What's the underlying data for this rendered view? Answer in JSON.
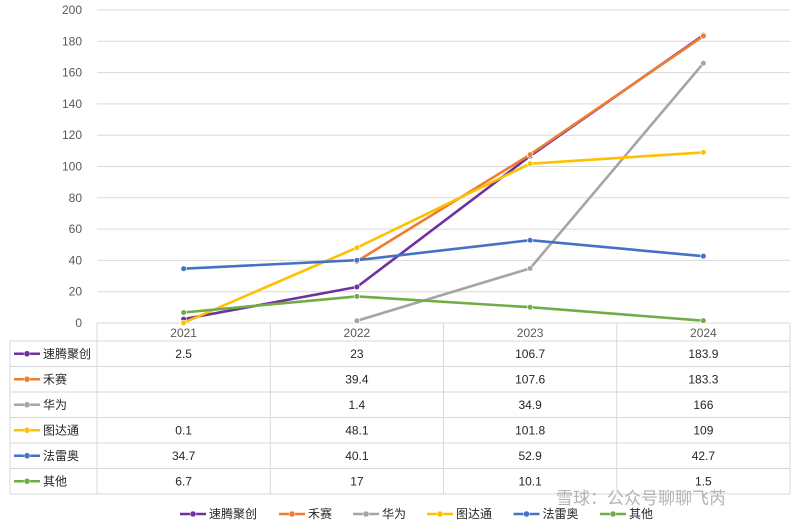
{
  "chart_data": {
    "type": "line",
    "title": "",
    "xlabel": "",
    "ylabel": "",
    "categories": [
      "2021",
      "2022",
      "2023",
      "2024"
    ],
    "ylim": [
      0,
      200
    ],
    "yticks": [
      "0",
      "20",
      "40",
      "60",
      "80",
      "100",
      "120",
      "140",
      "160",
      "180",
      "200"
    ],
    "grid": true,
    "legend_position": "bottom",
    "series": [
      {
        "name": "速腾聚创",
        "color": "#7030A0",
        "values": [
          2.5,
          23,
          106.7,
          183.9
        ],
        "labels": [
          "2.5",
          "23",
          "106.7",
          "183.9"
        ]
      },
      {
        "name": "禾赛",
        "color": "#ED7D31",
        "values": [
          null,
          39.4,
          107.6,
          183.3
        ],
        "labels": [
          "",
          "39.4",
          "107.6",
          "183.3"
        ]
      },
      {
        "name": "华为",
        "color": "#A5A5A5",
        "values": [
          null,
          1.4,
          34.9,
          166
        ],
        "labels": [
          "",
          "1.4",
          "34.9",
          "166"
        ]
      },
      {
        "name": "图达通",
        "color": "#FFC000",
        "values": [
          0.1,
          48.1,
          101.8,
          109
        ],
        "labels": [
          "0.1",
          "48.1",
          "101.8",
          "109"
        ]
      },
      {
        "name": "法雷奥",
        "color": "#4472C4",
        "values": [
          34.7,
          40.1,
          52.9,
          42.7
        ],
        "labels": [
          "34.7",
          "40.1",
          "52.9",
          "42.7"
        ]
      },
      {
        "name": "其他",
        "color": "#70AD47",
        "values": [
          6.7,
          17,
          10.1,
          1.5
        ],
        "labels": [
          "6.7",
          "17",
          "10.1",
          "1.5"
        ]
      }
    ]
  },
  "watermark": "雪球：公众号聊聊飞芮"
}
